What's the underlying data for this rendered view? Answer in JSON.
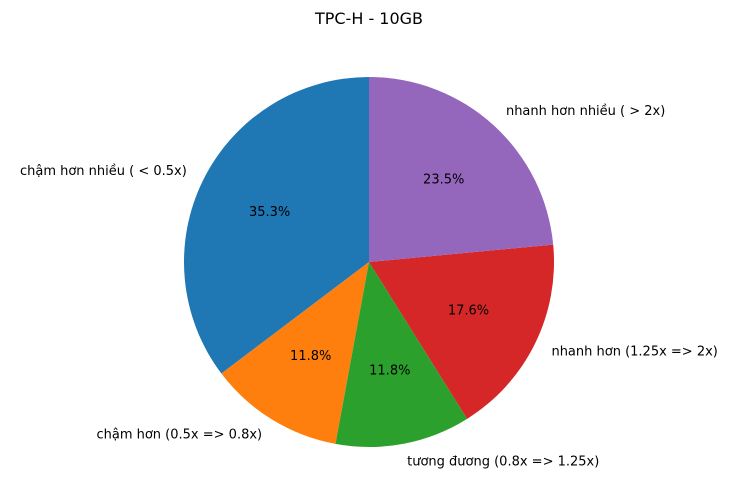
{
  "chart_data": {
    "type": "pie",
    "title": "TPC-H - 10GB",
    "categories": [
      "chậm hơn nhiều ( < 0.5x)",
      "chậm hơn (0.5x => 0.8x)",
      "tương đương (0.8x => 1.25x)",
      "nhanh hơn (1.25x => 2x)",
      "nhanh hơn nhiều ( > 2x)"
    ],
    "values": [
      35.3,
      11.8,
      11.8,
      17.6,
      23.5
    ],
    "percent_labels": [
      "35.3%",
      "11.8%",
      "11.8%",
      "17.6%",
      "23.5%"
    ],
    "colors": [
      "#1f77b4",
      "#ff7f0e",
      "#2ca02c",
      "#d62728",
      "#9467bd"
    ],
    "start_angle_deg": 90,
    "direction": "counterclockwise",
    "legend": "none"
  }
}
